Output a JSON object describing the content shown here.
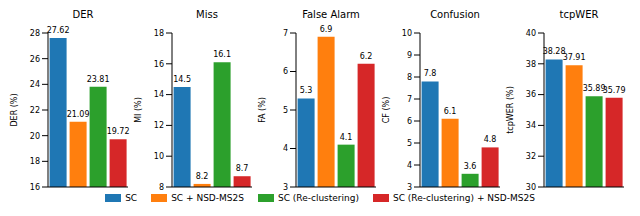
{
  "chart_data": [
    {
      "type": "bar",
      "title": "DER",
      "y_label": "DER (%)",
      "categories": [
        "SC",
        "SC + NSD-MS2S",
        "SC (Re-clustering)",
        "SC (Re-clustering) + NSD-MS2S"
      ],
      "values": [
        27.62,
        21.09,
        23.81,
        19.72
      ],
      "colors": [
        "#1f77b4",
        "#ff7f0e",
        "#2ca02c",
        "#d62728"
      ],
      "ylim": [
        16,
        28
      ],
      "yticks": [
        16,
        18,
        20,
        22,
        24,
        26,
        28
      ],
      "data_labels": true,
      "tick_labels": "y",
      "legend": "bottom"
    },
    {
      "type": "bar",
      "title": "Miss",
      "y_label": "MI (%)",
      "categories": [
        "SC",
        "SC + NSD-MS2S",
        "SC (Re-clustering)",
        "SC (Re-clustering) + NSD-MS2S"
      ],
      "values": [
        14.5,
        8.2,
        16.1,
        8.7
      ],
      "colors": [
        "#1f77b4",
        "#ff7f0e",
        "#2ca02c",
        "#d62728"
      ],
      "ylim": [
        8,
        18
      ],
      "yticks": [
        8,
        10,
        12,
        14,
        16,
        18
      ],
      "data_labels": true,
      "tick_labels": "y"
    },
    {
      "type": "bar",
      "title": "False Alarm",
      "y_label": "FA (%)",
      "categories": [
        "SC",
        "SC + NSD-MS2S",
        "SC (Re-clustering)",
        "SC (Re-clustering) + NSD-MS2S"
      ],
      "values": [
        5.3,
        6.9,
        4.1,
        6.2
      ],
      "colors": [
        "#1f77b4",
        "#ff7f0e",
        "#2ca02c",
        "#d62728"
      ],
      "ylim": [
        3,
        7
      ],
      "yticks": [
        3,
        4,
        5,
        6,
        7
      ],
      "data_labels": true,
      "tick_labels": "y"
    },
    {
      "type": "bar",
      "title": "Confusion",
      "y_label": "CF (%)",
      "categories": [
        "SC",
        "SC + NSD-MS2S",
        "SC (Re-clustering)",
        "SC (Re-clustering) + NSD-MS2S"
      ],
      "values": [
        7.8,
        6.1,
        3.6,
        4.8
      ],
      "colors": [
        "#1f77b4",
        "#ff7f0e",
        "#2ca02c",
        "#d62728"
      ],
      "ylim": [
        3,
        10
      ],
      "yticks": [
        3,
        4,
        5,
        6,
        7,
        8,
        9,
        10
      ],
      "data_labels": true,
      "tick_labels": "y"
    },
    {
      "type": "bar",
      "title": "tcpWER",
      "y_label": "tcpWER (%)",
      "categories": [
        "SC",
        "SC + NSD-MS2S",
        "SC (Re-clustering)",
        "SC (Re-clustering) + NSD-MS2S"
      ],
      "values": [
        38.28,
        37.91,
        35.89,
        35.79
      ],
      "colors": [
        "#1f77b4",
        "#ff7f0e",
        "#2ca02c",
        "#d62728"
      ],
      "ylim": [
        30,
        40
      ],
      "yticks": [
        30,
        32,
        34,
        36,
        38,
        40
      ],
      "data_labels": true,
      "tick_labels": "y"
    }
  ]
}
